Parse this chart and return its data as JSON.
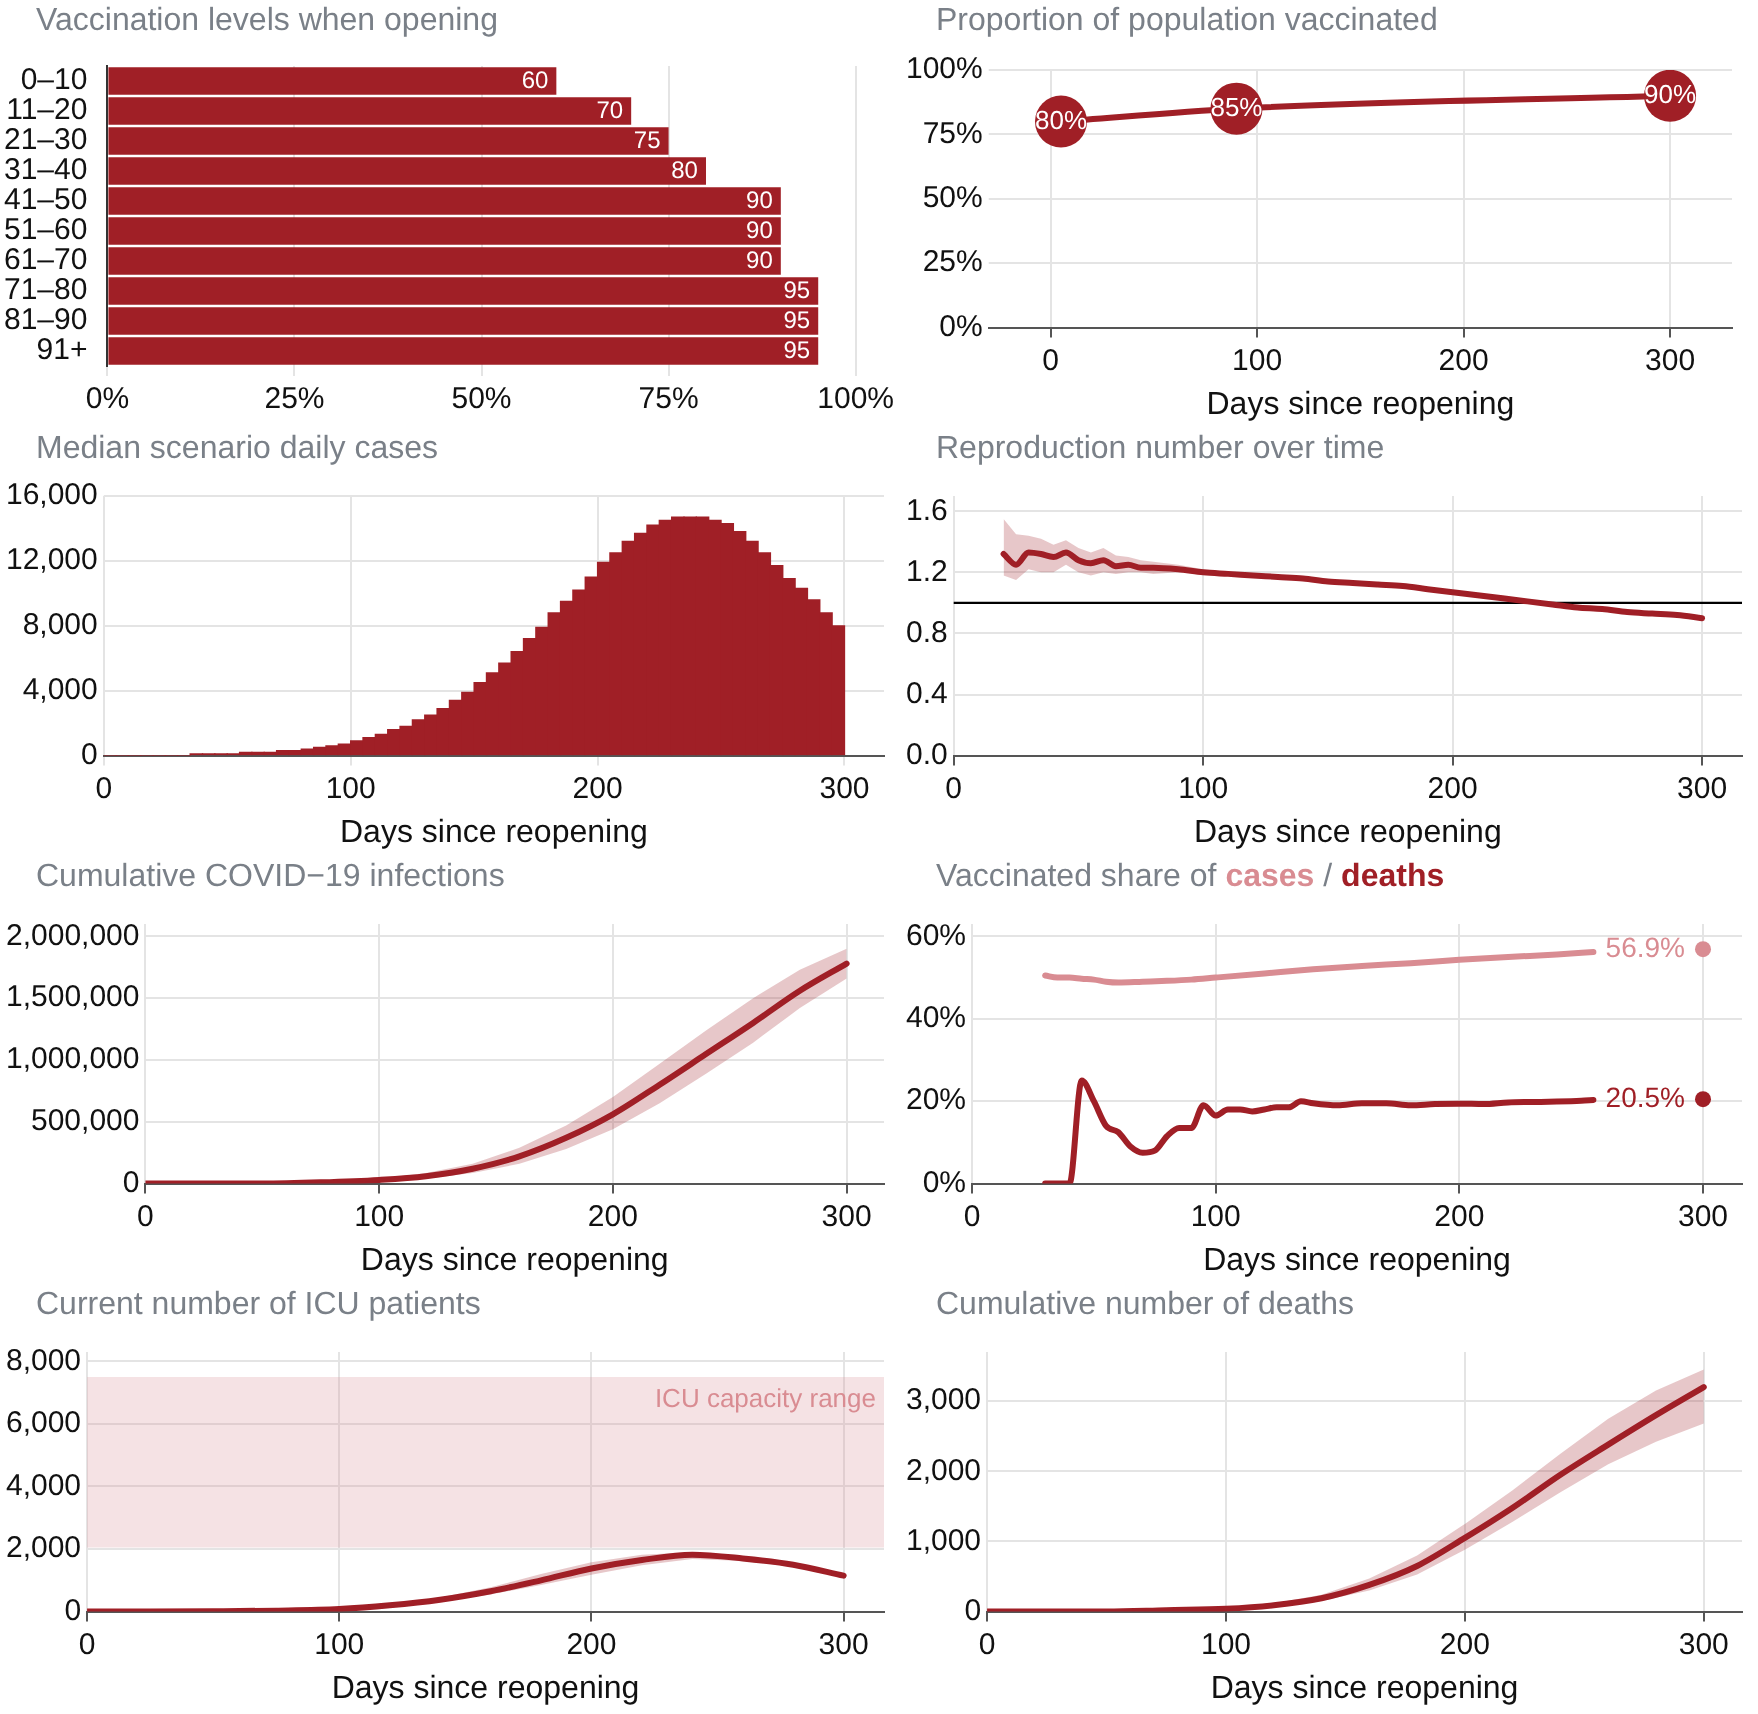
{
  "chart_data": [
    {
      "type": "bar",
      "orientation": "horizontal",
      "title": "Vaccination levels when opening",
      "categories": [
        "0–10",
        "11–20",
        "21–30",
        "31–40",
        "41–50",
        "51–60",
        "61–70",
        "71–80",
        "81–90",
        "91+"
      ],
      "values": [
        60,
        70,
        75,
        80,
        90,
        90,
        90,
        95,
        95,
        95
      ],
      "color": "#a01f26",
      "xlim": [
        0,
        100
      ],
      "xticks": [
        {
          "value": 0,
          "label": "0%"
        },
        {
          "value": 25,
          "label": "25%"
        },
        {
          "value": 50,
          "label": "50%"
        },
        {
          "value": 75,
          "label": "75%"
        },
        {
          "value": 100,
          "label": "100%"
        }
      ],
      "grid": "x",
      "data_labels": true
    },
    {
      "type": "line",
      "title": "Proportion of population vaccinated",
      "xlabel": "Days since reopening",
      "x": [
        5,
        90,
        300
      ],
      "marker": "circle",
      "series": [
        {
          "color": "#a01f26",
          "values": [
            80,
            85,
            90
          ],
          "value_labels": [
            "80%",
            "85%",
            "90%"
          ]
        }
      ],
      "xlim": [
        -30,
        330
      ],
      "xticks": [
        0,
        100,
        200,
        300
      ],
      "ylim": [
        0,
        100
      ],
      "yticks": [
        {
          "value": 0,
          "label": "0%"
        },
        {
          "value": 25,
          "label": "25%"
        },
        {
          "value": 50,
          "label": "50%"
        },
        {
          "value": 75,
          "label": "75%"
        },
        {
          "value": 100,
          "label": "100%"
        }
      ],
      "grid": true
    },
    {
      "type": "histogram",
      "title": "Median scenario daily cases",
      "xlabel": "Days since reopening",
      "bins": [
        0,
        5,
        10,
        15,
        20,
        25,
        30,
        35,
        40,
        45,
        50,
        55,
        60,
        65,
        70,
        75,
        80,
        85,
        90,
        95,
        100,
        105,
        110,
        115,
        120,
        125,
        130,
        135,
        140,
        145,
        150,
        155,
        160,
        165,
        170,
        175,
        180,
        185,
        190,
        195,
        200,
        205,
        210,
        215,
        220,
        225,
        230,
        235,
        240,
        245,
        250,
        255,
        260,
        265,
        270,
        275,
        280,
        285,
        290,
        295,
        300
      ],
      "values": [
        0,
        0,
        0,
        0,
        0,
        0,
        0,
        100,
        100,
        100,
        100,
        200,
        200,
        200,
        300,
        300,
        400,
        500,
        600,
        700,
        900,
        1100,
        1300,
        1600,
        1800,
        2200,
        2500,
        2900,
        3400,
        3900,
        4500,
        5100,
        5700,
        6400,
        7200,
        7900,
        8800,
        9500,
        10200,
        11000,
        11900,
        12500,
        13200,
        13700,
        14200,
        14500,
        14700,
        14700,
        14700,
        14500,
        14300,
        13800,
        13200,
        12500,
        11700,
        10900,
        10300,
        9600,
        8800,
        8000
      ],
      "color": "#a01f26",
      "xlim": [
        0,
        316
      ],
      "xticks": [
        0,
        100,
        200,
        300
      ],
      "ylim": [
        0,
        16000
      ],
      "yticks": [
        0,
        {
          "value": 4000,
          "label": "4,000"
        },
        {
          "value": 8000,
          "label": "8,000"
        },
        {
          "value": 12000,
          "label": "12,000"
        },
        {
          "value": 16000,
          "label": "16,000"
        }
      ],
      "grid": true
    },
    {
      "type": "line",
      "title": "Reproduction number over time",
      "xlabel": "Days since reopening",
      "x": [
        20,
        25,
        30,
        35,
        40,
        45,
        50,
        55,
        60,
        65,
        70,
        75,
        80,
        90,
        100,
        110,
        120,
        130,
        140,
        150,
        160,
        170,
        180,
        190,
        200,
        210,
        220,
        230,
        240,
        250,
        260,
        270,
        280,
        290,
        300
      ],
      "series": [
        {
          "color": "#a01f26",
          "values": [
            1.32,
            1.25,
            1.33,
            1.32,
            1.3,
            1.33,
            1.28,
            1.26,
            1.28,
            1.24,
            1.25,
            1.23,
            1.23,
            1.22,
            1.2,
            1.19,
            1.18,
            1.17,
            1.16,
            1.14,
            1.13,
            1.12,
            1.11,
            1.09,
            1.07,
            1.05,
            1.03,
            1.01,
            0.99,
            0.97,
            0.96,
            0.94,
            0.93,
            0.92,
            0.9
          ],
          "lower": [
            1.18,
            1.15,
            1.22,
            1.2,
            1.2,
            1.25,
            1.2,
            1.18,
            1.2,
            1.19,
            1.2,
            1.2,
            1.19,
            1.2,
            1.19,
            1.18,
            1.17,
            1.16,
            1.15,
            1.13,
            1.12,
            1.11,
            1.1,
            1.08,
            1.06,
            1.04,
            1.02,
            1.0,
            0.98,
            0.96,
            0.95,
            0.93,
            0.92,
            0.91,
            0.89
          ],
          "upper": [
            1.55,
            1.45,
            1.44,
            1.42,
            1.38,
            1.41,
            1.36,
            1.33,
            1.36,
            1.31,
            1.3,
            1.28,
            1.27,
            1.25,
            1.22,
            1.2,
            1.19,
            1.18,
            1.17,
            1.15,
            1.14,
            1.13,
            1.12,
            1.1,
            1.08,
            1.06,
            1.04,
            1.02,
            1.0,
            0.98,
            0.97,
            0.95,
            0.94,
            0.93,
            0.91
          ]
        }
      ],
      "ref_lines": [
        {
          "axis": "y",
          "value": 1,
          "color": "#000000"
        }
      ],
      "xlim": [
        0,
        316
      ],
      "xticks": [
        0,
        100,
        200,
        300
      ],
      "ylim": [
        0,
        1.7
      ],
      "yticks": [
        {
          "value": 0,
          "label": "0.0"
        },
        0.4,
        0.8,
        1.2,
        1.6
      ],
      "grid": true
    },
    {
      "type": "line",
      "title": "Cumulative COVID−19 infections",
      "xlabel": "Days since reopening",
      "x": [
        0,
        25,
        50,
        75,
        100,
        120,
        140,
        160,
        180,
        200,
        220,
        240,
        260,
        280,
        300
      ],
      "series": [
        {
          "color": "#a01f26",
          "values": [
            0,
            0,
            0,
            10000,
            30000,
            60000,
            120000,
            220000,
            370000,
            560000,
            800000,
            1050000,
            1300000,
            1560000,
            1780000
          ],
          "lower": [
            0,
            0,
            0,
            10000,
            20000,
            40000,
            85000,
            160000,
            280000,
            440000,
            650000,
            890000,
            1140000,
            1420000,
            1660000
          ],
          "upper": [
            0,
            0,
            10000,
            20000,
            40000,
            85000,
            160000,
            290000,
            470000,
            700000,
            970000,
            1240000,
            1500000,
            1730000,
            1900000
          ]
        }
      ],
      "xlim": [
        0,
        316
      ],
      "xticks": [
        0,
        100,
        200,
        300
      ],
      "ylim": [
        0,
        2100000
      ],
      "yticks": [
        0,
        {
          "value": 500000,
          "label": "500,000"
        },
        {
          "value": 1000000,
          "label": "1,000,000"
        },
        {
          "value": 1500000,
          "label": "1,500,000"
        },
        {
          "value": 2000000,
          "label": "2,000,000"
        }
      ],
      "grid": true
    },
    {
      "type": "line",
      "title": "Vaccinated share of",
      "xlabel": "Days since reopening",
      "legend": "top",
      "annotations": [
        "/"
      ],
      "series": [
        {
          "name": "cases",
          "color": "#d98c92",
          "x": [
            30,
            35,
            40,
            45,
            50,
            55,
            60,
            70,
            80,
            90,
            100,
            120,
            140,
            160,
            180,
            200,
            220,
            240,
            255,
            260,
            300
          ],
          "values": [
            50.5,
            50,
            50,
            49.7,
            49.5,
            49,
            48.8,
            49,
            49.2,
            49.5,
            50,
            51,
            52,
            52.8,
            53.5,
            54.3,
            55,
            55.6,
            56.2,
            null,
            56.9
          ],
          "value_labels": [
            null,
            null,
            null,
            null,
            null,
            null,
            null,
            null,
            null,
            null,
            null,
            null,
            null,
            null,
            null,
            null,
            null,
            null,
            null,
            null,
            "56.9%"
          ]
        },
        {
          "name": "deaths",
          "color": "#a01f26",
          "x": [
            30,
            40,
            45,
            50,
            55,
            60,
            65,
            70,
            75,
            80,
            85,
            90,
            95,
            100,
            105,
            110,
            115,
            120,
            125,
            130,
            135,
            140,
            150,
            160,
            170,
            180,
            190,
            200,
            210,
            220,
            230,
            240,
            250,
            255,
            260,
            300
          ],
          "values": [
            0,
            0,
            25,
            20,
            14,
            12.5,
            9,
            7.5,
            8,
            11.5,
            13.5,
            13.5,
            19,
            16.5,
            18,
            18,
            17.5,
            18,
            18.5,
            18.5,
            20,
            19.5,
            19,
            19.5,
            19.5,
            19,
            19.3,
            19.4,
            19.3,
            19.7,
            19.8,
            19.9,
            20.1,
            20.3,
            null,
            20.5
          ],
          "value_labels": [
            null,
            null,
            null,
            null,
            null,
            null,
            null,
            null,
            null,
            null,
            null,
            null,
            null,
            null,
            null,
            null,
            null,
            null,
            null,
            null,
            null,
            null,
            null,
            null,
            null,
            null,
            null,
            null,
            null,
            null,
            null,
            null,
            null,
            null,
            null,
            "20.5%"
          ]
        }
      ],
      "xlim": [
        0,
        316
      ],
      "xticks": [
        0,
        100,
        200,
        300
      ],
      "ylim": [
        0,
        63
      ],
      "yticks": [
        {
          "value": 0,
          "label": "0%"
        },
        {
          "value": 20,
          "label": "20%"
        },
        {
          "value": 40,
          "label": "40%"
        },
        {
          "value": 60,
          "label": "60%"
        }
      ],
      "grid": true
    },
    {
      "type": "line",
      "title": "Current number of ICU patients",
      "xlabel": "Days since reopening",
      "x": [
        0,
        25,
        50,
        75,
        100,
        120,
        140,
        160,
        180,
        200,
        220,
        240,
        260,
        280,
        300
      ],
      "series": [
        {
          "color": "#a01f26",
          "values": [
            0,
            0,
            10,
            30,
            80,
            200,
            380,
            650,
            1000,
            1380,
            1650,
            1820,
            1700,
            1500,
            1150
          ],
          "lower": [
            0,
            0,
            0,
            20,
            60,
            160,
            320,
            550,
            850,
            1180,
            1480,
            1680,
            1620,
            1440,
            1100
          ],
          "upper": [
            0,
            10,
            20,
            40,
            100,
            240,
            450,
            780,
            1200,
            1580,
            1820,
            1900,
            1760,
            1560,
            1220
          ]
        }
      ],
      "bands": [
        {
          "axis": "y",
          "from": 2050,
          "to": 7500,
          "label": "ICU capacity range",
          "color": "#d98c92"
        }
      ],
      "xlim": [
        0,
        316
      ],
      "xticks": [
        0,
        100,
        200,
        300
      ],
      "ylim": [
        0,
        8300
      ],
      "yticks": [
        0,
        {
          "value": 2000,
          "label": "2,000"
        },
        {
          "value": 4000,
          "label": "4,000"
        },
        {
          "value": 6000,
          "label": "6,000"
        },
        {
          "value": 8000,
          "label": "8,000"
        }
      ],
      "grid": true
    },
    {
      "type": "line",
      "title": "Cumulative number of deaths",
      "xlabel": "Days since reopening",
      "x": [
        0,
        25,
        50,
        75,
        100,
        120,
        140,
        160,
        180,
        200,
        220,
        240,
        260,
        280,
        300
      ],
      "series": [
        {
          "color": "#a01f26",
          "values": [
            0,
            0,
            0,
            20,
            40,
            90,
            190,
            380,
            650,
            1050,
            1480,
            1950,
            2380,
            2800,
            3200
          ],
          "lower": [
            0,
            0,
            0,
            10,
            30,
            70,
            150,
            300,
            530,
            880,
            1280,
            1700,
            2100,
            2420,
            2680
          ],
          "upper": [
            0,
            0,
            10,
            20,
            60,
            120,
            240,
            470,
            800,
            1250,
            1730,
            2250,
            2750,
            3150,
            3450
          ]
        }
      ],
      "xlim": [
        0,
        316
      ],
      "xticks": [
        0,
        100,
        200,
        300
      ],
      "ylim": [
        0,
        3700
      ],
      "yticks": [
        0,
        {
          "value": 1000,
          "label": "1,000"
        },
        {
          "value": 2000,
          "label": "2,000"
        },
        {
          "value": 3000,
          "label": "3,000"
        }
      ],
      "grid": true
    }
  ]
}
